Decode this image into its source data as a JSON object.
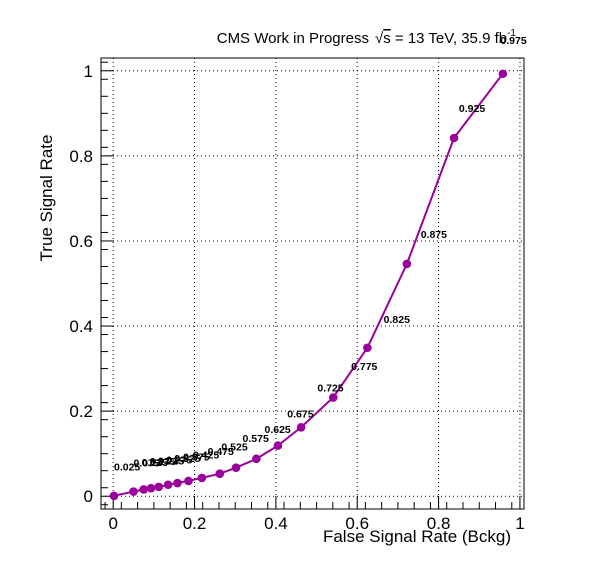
{
  "chart_data": {
    "type": "line",
    "title": {
      "prefix": "CMS Work in Progress",
      "sqrt_symbol": "√",
      "sqrt_arg": "s",
      "energy": " = 13 TeV, 35.9 fb",
      "lumi_exponent": "-1"
    },
    "xlabel": "False Signal Rate (Bckg)",
    "ylabel": "True Signal Rate",
    "xlim": [
      -0.03,
      1.01
    ],
    "ylim": [
      -0.03,
      1.03
    ],
    "xticks": [
      "0",
      "0.2",
      "0.4",
      "0.6",
      "0.8",
      "1"
    ],
    "yticks": [
      "0",
      "0.2",
      "0.4",
      "0.6",
      "0.8",
      "1"
    ],
    "grid": true,
    "color": "#9a009a",
    "series": [
      {
        "x": [
          0.002,
          0.05,
          0.075,
          0.093,
          0.112,
          0.135,
          0.158,
          0.185,
          0.218,
          0.262,
          0.302,
          0.352,
          0.405,
          0.462,
          0.541,
          0.625,
          0.722,
          0.838,
          0.958
        ],
        "y": [
          0.001,
          0.011,
          0.016,
          0.019,
          0.022,
          0.027,
          0.031,
          0.036,
          0.043,
          0.053,
          0.067,
          0.088,
          0.119,
          0.162,
          0.232,
          0.349,
          0.546,
          0.842,
          0.993
        ]
      }
    ],
    "point_labels": [
      "0.025",
      "0.075",
      "0.125",
      "0.175",
      "0.225",
      "0.275",
      "0.325",
      "0.375",
      "0.425",
      "0.475",
      "0.525",
      "0.575",
      "0.625",
      "0.675",
      "0.725",
      "0.775",
      "0.825",
      "0.875",
      "0.925",
      "0.975"
    ],
    "label_positions": [
      {
        "x": 0.002,
        "y": 0.06
      },
      {
        "x": 0.05,
        "y": 0.07
      },
      {
        "x": 0.07,
        "y": 0.071
      },
      {
        "x": 0.09,
        "y": 0.073
      },
      {
        "x": 0.11,
        "y": 0.075
      },
      {
        "x": 0.13,
        "y": 0.077
      },
      {
        "x": 0.15,
        "y": 0.08
      },
      {
        "x": 0.172,
        "y": 0.084
      },
      {
        "x": 0.196,
        "y": 0.089
      },
      {
        "x": 0.232,
        "y": 0.097
      },
      {
        "x": 0.266,
        "y": 0.108
      },
      {
        "x": 0.318,
        "y": 0.127
      },
      {
        "x": 0.372,
        "y": 0.149
      },
      {
        "x": 0.428,
        "y": 0.185
      },
      {
        "x": 0.502,
        "y": 0.246
      },
      {
        "x": 0.585,
        "y": 0.297
      },
      {
        "x": 0.665,
        "y": 0.407
      },
      {
        "x": 0.756,
        "y": 0.607
      },
      {
        "x": 0.85,
        "y": 0.903
      },
      {
        "x": 0.952,
        "y": 1.063
      }
    ]
  }
}
